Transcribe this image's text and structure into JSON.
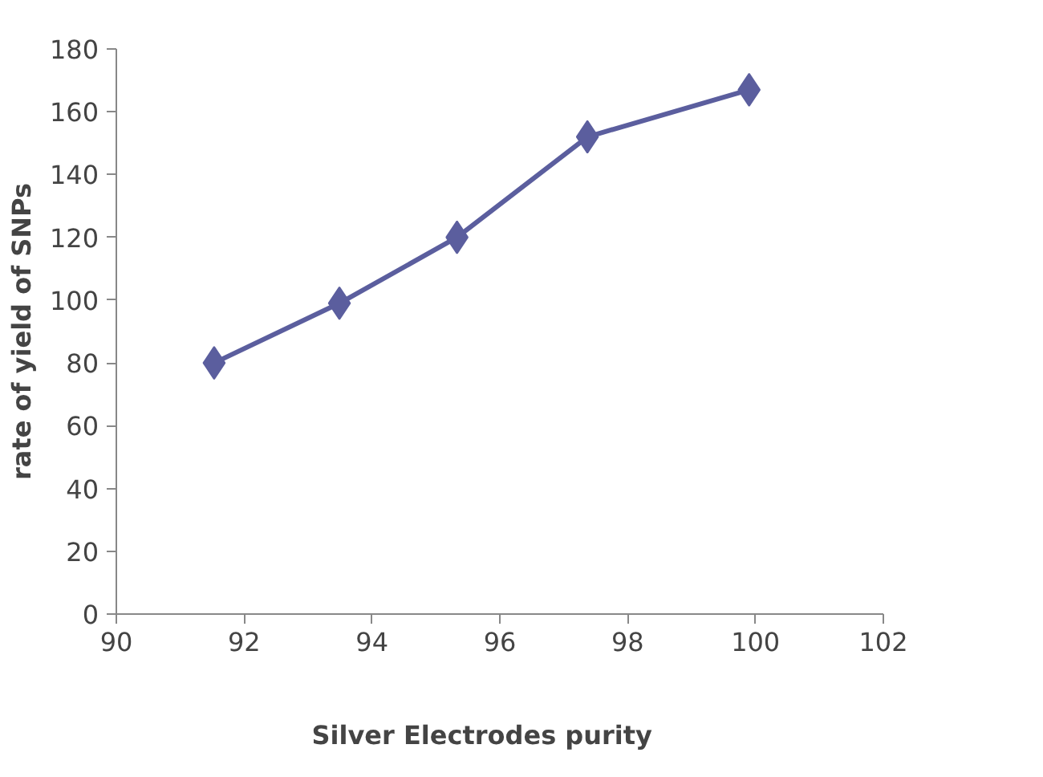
{
  "chart_data": {
    "type": "line",
    "xlabel": "Silver   Electrodes   purity",
    "ylabel": "rate of yield of SNPs",
    "x": [
      91.53,
      93.49,
      95.33,
      97.37,
      99.9
    ],
    "series": [
      {
        "color": "#5b5e9e",
        "values": [
          80,
          99,
          120,
          152,
          167
        ]
      }
    ],
    "xlim": [
      90,
      102
    ],
    "xticks": [
      90,
      92,
      94,
      96,
      98,
      100,
      102
    ],
    "ylim": [
      0,
      180
    ],
    "yticks": [
      0,
      20,
      40,
      60,
      80,
      100,
      120,
      140,
      160,
      180
    ],
    "grid": false,
    "marker": "diamond",
    "line_style": "solid"
  }
}
